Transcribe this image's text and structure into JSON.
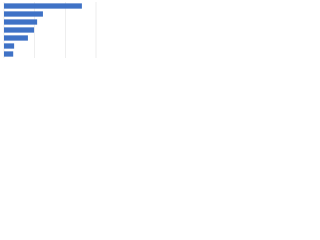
{
  "chart_data": {
    "type": "bar",
    "orientation": "horizontal",
    "categories": [
      null,
      null,
      null,
      null,
      null,
      null,
      null
    ],
    "values": [
      25.4,
      12.7,
      10.8,
      9.8,
      7.8,
      3.3,
      3.0
    ],
    "color": "#3f72c6",
    "xlim": [
      0,
      30
    ],
    "xticks": [
      0,
      10,
      20,
      30
    ],
    "grid": true
  }
}
